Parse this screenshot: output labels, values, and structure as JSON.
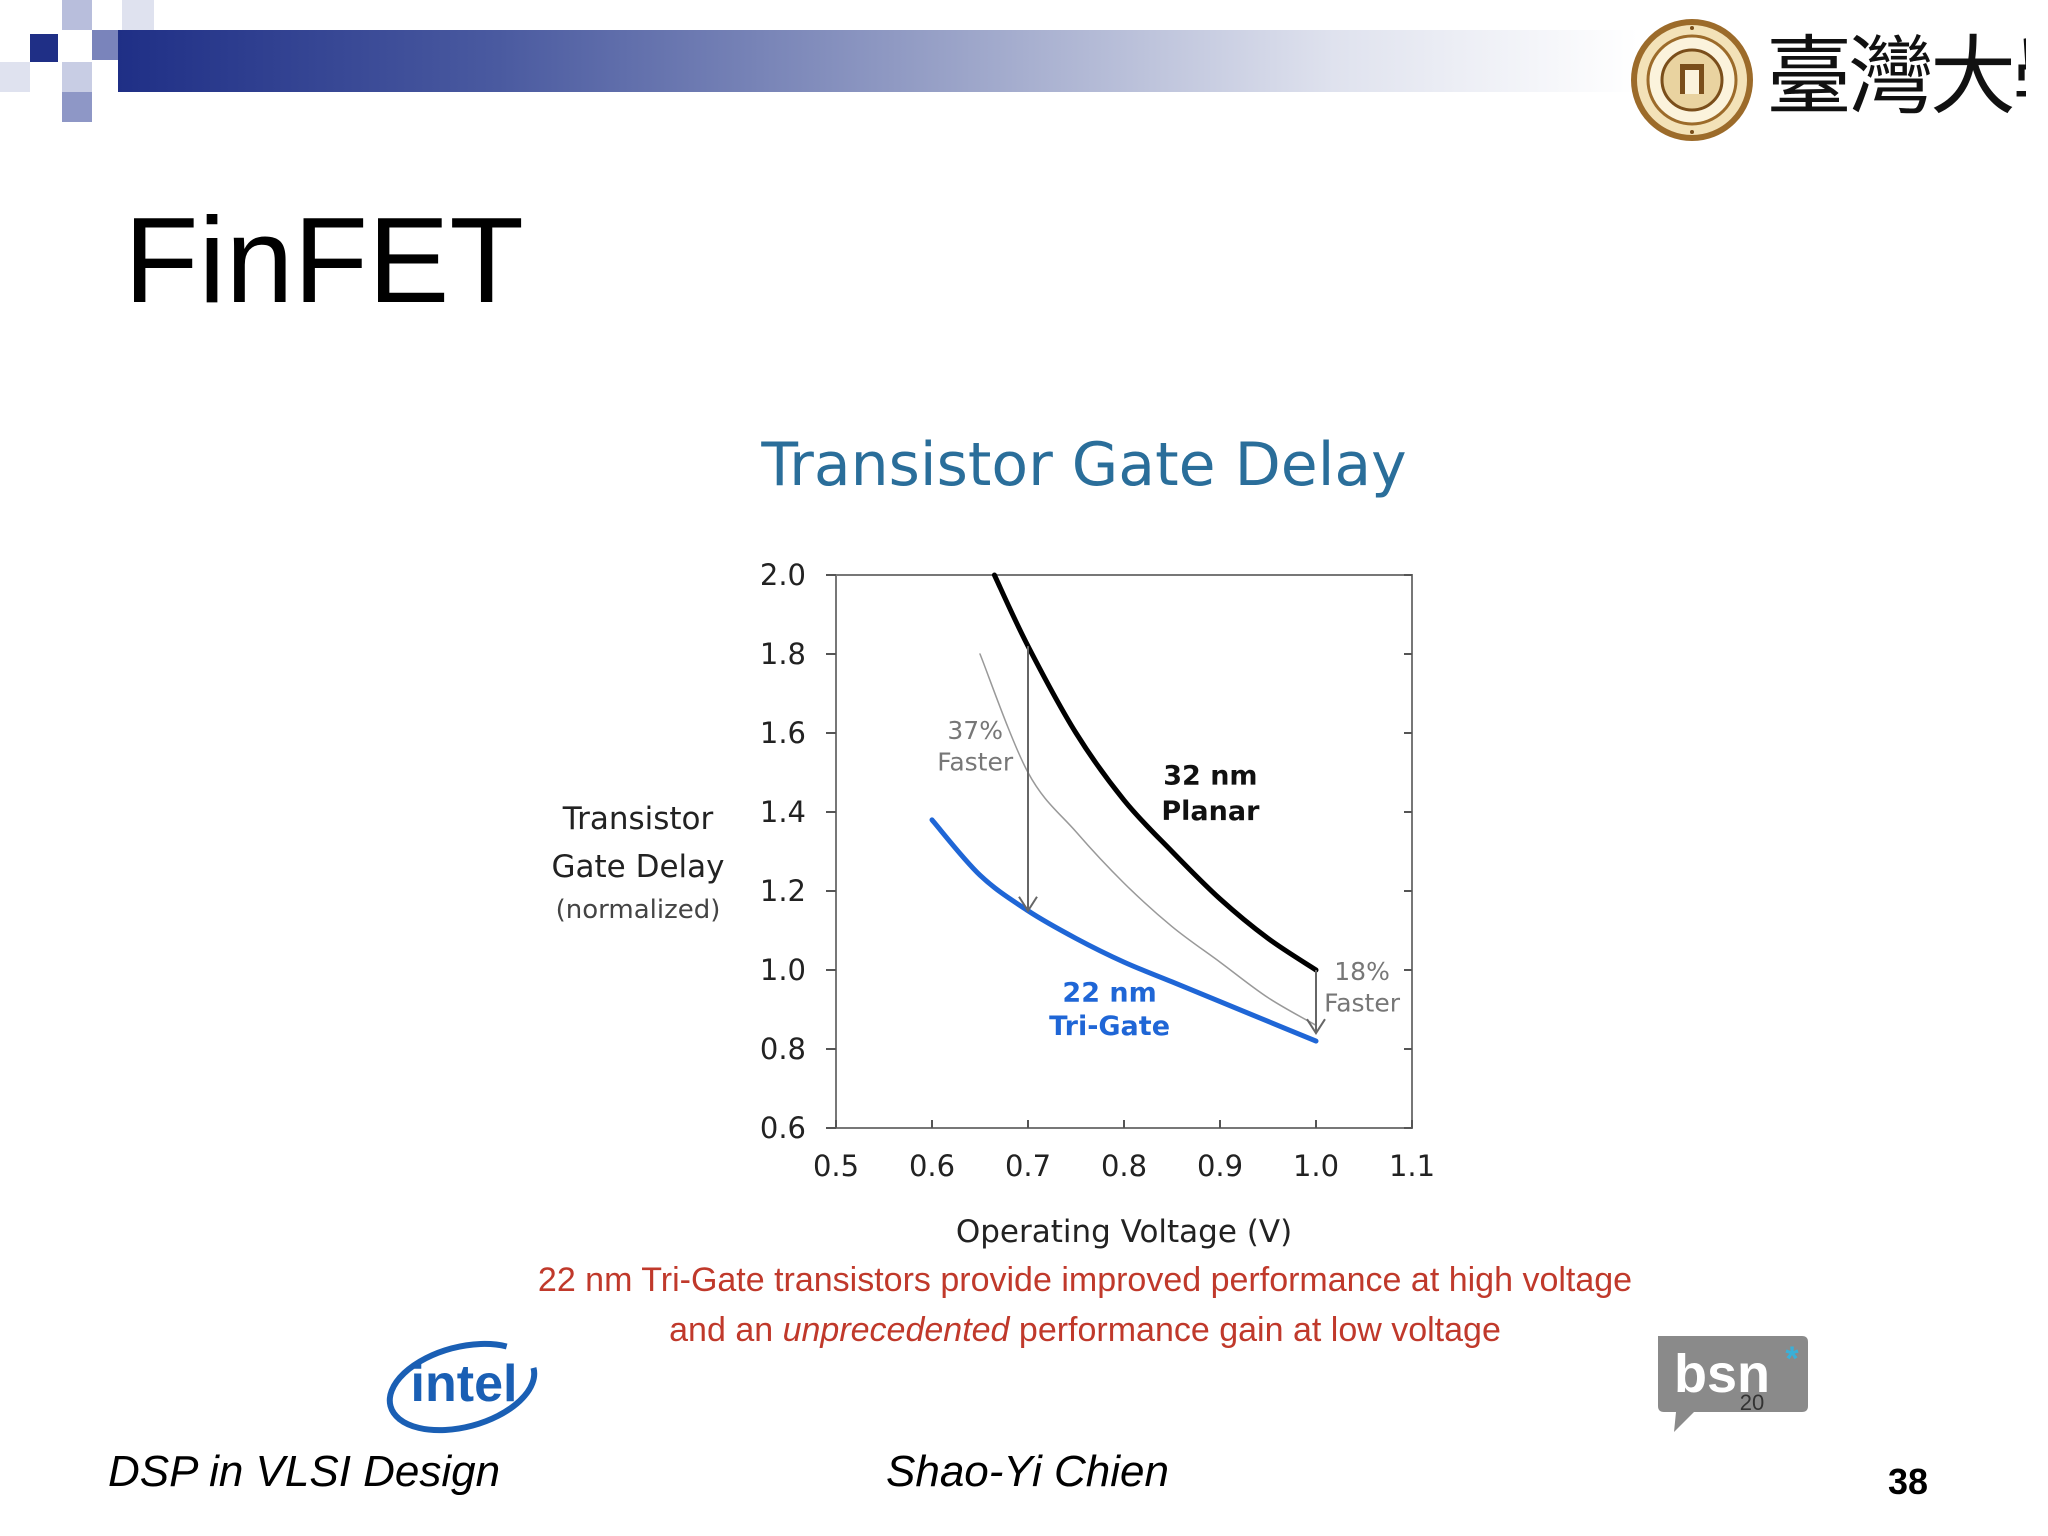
{
  "slide": {
    "title": "FinFET",
    "logo_text": "臺灣大學",
    "caption_line1": "22 nm Tri-Gate transistors provide improved performance at high voltage",
    "caption_line2_pre": "and an ",
    "caption_line2_em": "unprecedented",
    "caption_line2_post": " performance gain at low voltage",
    "intel_logo_text": "intel",
    "bsn_logo_text": "bsn",
    "bsn_number": "20",
    "footer_left": "DSP in VLSI Design",
    "footer_center": "Shao-Yi Chien",
    "page_number": "38"
  },
  "colors": {
    "banner_dark": "#1f2f86",
    "chart_title": "#2a6e9a",
    "planar_curve": "#000000",
    "trigate_curve": "#1f66d6",
    "projection_curve": "#999999",
    "caption": "#c0392b"
  },
  "chart_data": {
    "type": "line",
    "title": "Transistor Gate Delay",
    "xlabel": "Operating Voltage (V)",
    "ylabel_lines": [
      "Transistor",
      "Gate Delay",
      "(normalized)"
    ],
    "xlim": [
      0.5,
      1.1
    ],
    "ylim": [
      0.6,
      2.0
    ],
    "xticks": [
      "0.5",
      "0.6",
      "0.7",
      "0.8",
      "0.9",
      "1.0",
      "1.1"
    ],
    "yticks": [
      "2.0",
      "1.8",
      "1.6",
      "1.4",
      "1.2",
      "1.0",
      "0.8",
      "0.6"
    ],
    "grid": false,
    "series": [
      {
        "name": "32 nm Planar",
        "label_lines": [
          "32 nm",
          "Planar"
        ],
        "color": "#000000",
        "x": [
          0.665,
          0.7,
          0.75,
          0.8,
          0.85,
          0.9,
          0.95,
          1.0
        ],
        "y": [
          2.0,
          1.82,
          1.6,
          1.43,
          1.3,
          1.18,
          1.08,
          1.0
        ]
      },
      {
        "name": "22 nm Tri-Gate",
        "label_lines": [
          "22 nm",
          "Tri-Gate"
        ],
        "color": "#1f66d6",
        "x": [
          0.6,
          0.65,
          0.7,
          0.75,
          0.8,
          0.85,
          0.9,
          0.95,
          1.0
        ],
        "y": [
          1.38,
          1.24,
          1.15,
          1.08,
          1.02,
          0.97,
          0.92,
          0.87,
          0.82
        ]
      },
      {
        "color": "#999999",
        "x": [
          0.65,
          0.7,
          0.75,
          0.8,
          0.85,
          0.9,
          0.95,
          1.0
        ],
        "y": [
          1.8,
          1.5,
          1.35,
          1.22,
          1.11,
          1.02,
          0.93,
          0.86
        ]
      }
    ],
    "annotations": [
      {
        "lines": [
          "37%",
          "Faster"
        ],
        "arrow_x": 0.7,
        "arrow_y_from": 1.82,
        "arrow_y_to": 1.15
      },
      {
        "lines": [
          "18%",
          "Faster"
        ],
        "arrow_x": 1.0,
        "arrow_y_from": 1.0,
        "arrow_y_to": 0.84
      }
    ]
  }
}
